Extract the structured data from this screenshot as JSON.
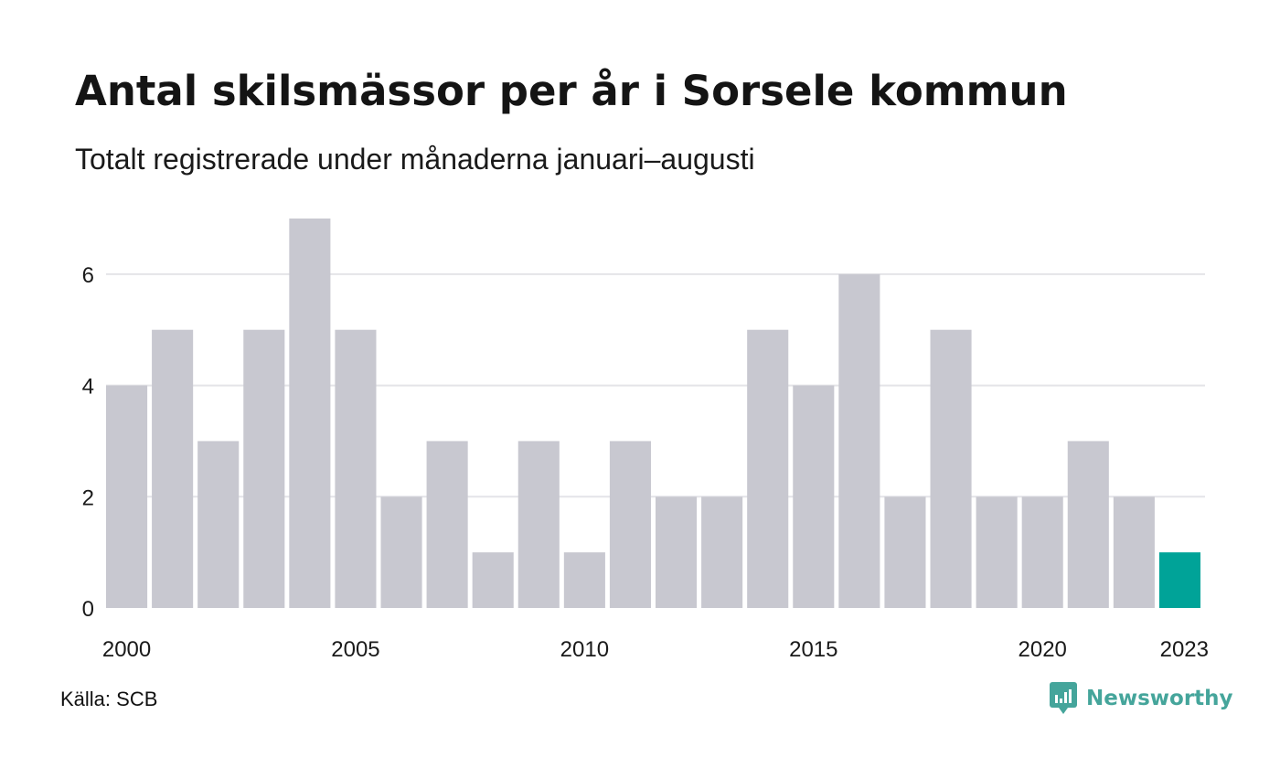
{
  "chart_data": {
    "type": "bar",
    "title": "Antal skilsmässor per år i Sorsele kommun",
    "subtitle": "Totalt registrerade under månaderna januari–augusti",
    "categories": [
      "2000",
      "2001",
      "2002",
      "2003",
      "2004",
      "2005",
      "2006",
      "2007",
      "2008",
      "2009",
      "2010",
      "2011",
      "2012",
      "2013",
      "2014",
      "2015",
      "2016",
      "2017",
      "2018",
      "2019",
      "2020",
      "2021",
      "2022",
      "2023"
    ],
    "values": [
      4,
      5,
      3,
      5,
      7,
      5,
      2,
      3,
      1,
      3,
      1,
      3,
      2,
      2,
      5,
      4,
      6,
      2,
      5,
      2,
      2,
      3,
      2,
      1
    ],
    "x_tick_labels": [
      "2000",
      "2005",
      "2010",
      "2015",
      "2020",
      "2023"
    ],
    "y_ticks": [
      0,
      2,
      4,
      6
    ],
    "ylim": [
      0,
      7
    ],
    "xlabel": "",
    "ylabel": "",
    "grid": "horizontal",
    "legend": "none",
    "bar_color": "#c8c8d0",
    "highlight_color": "#00a398",
    "highlight_category": "2023",
    "gridline_color": "#e4e4e8"
  },
  "footer": {
    "source": "Källa: SCB",
    "brand": "Newsworthy",
    "brand_color": "#45a59b",
    "brand_icon": "newsworthy-logo-icon"
  }
}
